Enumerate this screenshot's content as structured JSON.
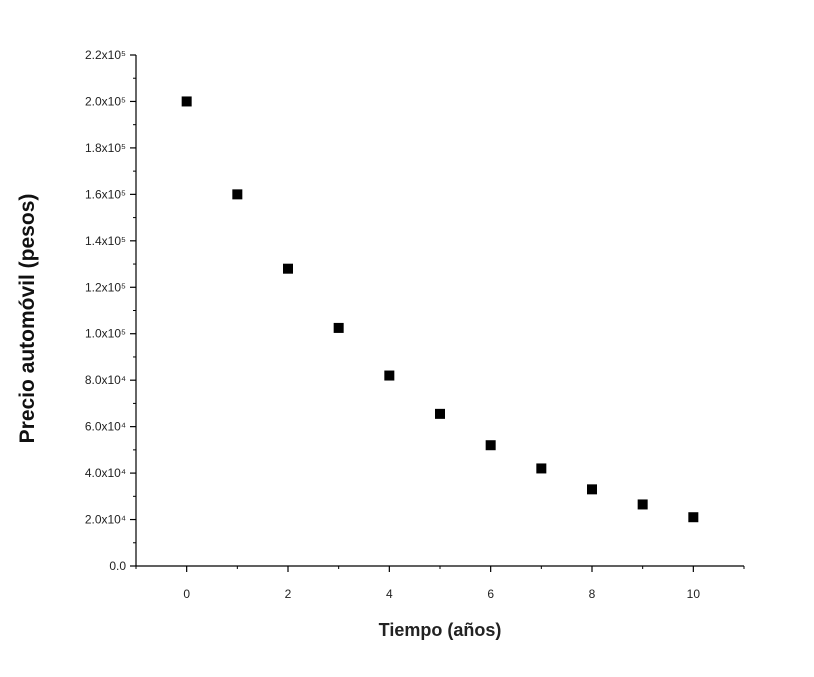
{
  "chart_data": {
    "type": "scatter",
    "title": "",
    "xlabel": "Tiempo (años)",
    "ylabel": "Precio automóvil (pesos)",
    "xlim": [
      -1,
      11
    ],
    "ylim": [
      0,
      220000
    ],
    "x_ticks": [
      {
        "value": 0,
        "label": "0"
      },
      {
        "value": 2,
        "label": "2"
      },
      {
        "value": 4,
        "label": "4"
      },
      {
        "value": 6,
        "label": "6"
      },
      {
        "value": 8,
        "label": "8"
      },
      {
        "value": 10,
        "label": "10"
      }
    ],
    "y_ticks": [
      {
        "value": 0,
        "label": "0.0"
      },
      {
        "value": 20000,
        "label": "2.0x10⁴"
      },
      {
        "value": 40000,
        "label": "4.0x10⁴"
      },
      {
        "value": 60000,
        "label": "6.0x10⁴"
      },
      {
        "value": 80000,
        "label": "8.0x10⁴"
      },
      {
        "value": 100000,
        "label": "1.0x10⁵"
      },
      {
        "value": 120000,
        "label": "1.2x10⁵"
      },
      {
        "value": 140000,
        "label": "1.4x10⁵"
      },
      {
        "value": 160000,
        "label": "1.6x10⁵"
      },
      {
        "value": 180000,
        "label": "1.8x10⁵"
      },
      {
        "value": 200000,
        "label": "2.0x10⁵"
      },
      {
        "value": 220000,
        "label": "2.2x10⁵"
      }
    ],
    "grid": false,
    "marker": "square",
    "marker_color": "#000000",
    "series": [
      {
        "x": [
          0,
          1,
          2,
          3,
          4,
          5,
          6,
          7,
          8,
          9,
          10
        ],
        "y": [
          200000,
          160000,
          128000,
          102500,
          82000,
          65500,
          52000,
          42000,
          33000,
          26500,
          21000
        ]
      }
    ]
  }
}
